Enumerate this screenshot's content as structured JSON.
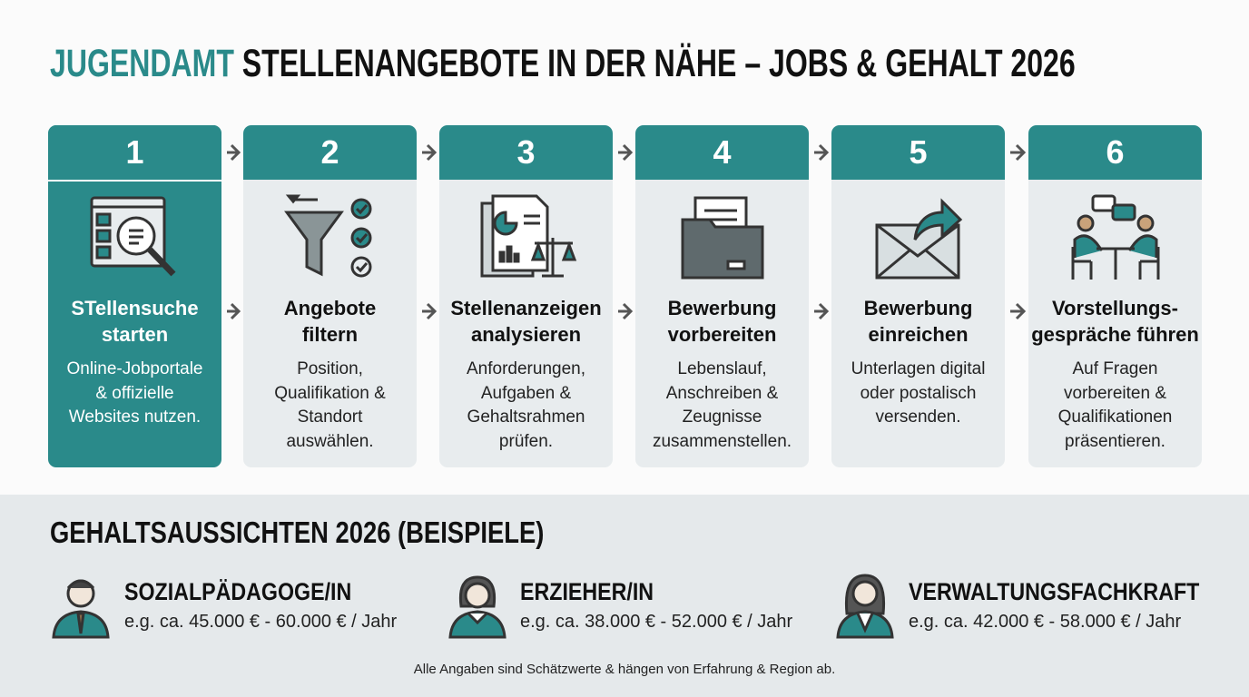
{
  "header": {
    "title_highlight": "JUGENDAMT",
    "title_rest": "STELLENANGEBOTE IN DER NÄHE – JOBS & GEHALT 2026"
  },
  "steps": [
    {
      "number": "1",
      "title_lines": [
        "STellensuche",
        "starten"
      ],
      "desc_lines": [
        "Online-Jobportale",
        "& offizielle",
        "Websites nutzen."
      ]
    },
    {
      "number": "2",
      "title_lines": [
        "Angebote",
        "filtern"
      ],
      "desc_lines": [
        "Position,",
        "Qualifikation &",
        "Standort",
        "auswählen."
      ]
    },
    {
      "number": "3",
      "title_lines": [
        "Stellenanzeigen",
        "analysieren"
      ],
      "desc_lines": [
        "Anforderungen,",
        "Aufgaben &",
        "Gehaltsrahmen",
        "prüfen."
      ]
    },
    {
      "number": "4",
      "title_lines": [
        "Bewerbung",
        "vorbereiten"
      ],
      "desc_lines": [
        "Lebenslauf,",
        "Anschreiben &",
        "Zeugnisse",
        "zusammenstellen."
      ]
    },
    {
      "number": "5",
      "title_lines": [
        "Bewerbung",
        "einreichen"
      ],
      "desc_lines": [
        "Unterlagen digital",
        "oder postalisch",
        "versenden."
      ]
    },
    {
      "number": "6",
      "title_lines": [
        "Vorstellungs-",
        "gespräche führen"
      ],
      "desc_lines": [
        "Auf Fragen",
        "vorbereiten &",
        "Qualifikationen",
        "präsentieren."
      ]
    }
  ],
  "salary": {
    "title": "GEHALTSAUSSICHTEN 2026 (BEISPIELE)",
    "items": [
      {
        "job": "SOZIALPÄDAGOGE/IN",
        "range": "e.g. ca. 45.000 € - 60.000 € / Jahr"
      },
      {
        "job": "ERZIEHER/IN",
        "range": "e.g. ca. 38.000 € - 52.000 € / Jahr"
      },
      {
        "job": "VERWALTUNGSFACHKRAFT",
        "range": "e.g. ca. 42.000 € - 58.000 € / Jahr"
      }
    ]
  },
  "footnote": "Alle Angaben sind Schätzwerte & hängen von Erfahrung & Region ab."
}
